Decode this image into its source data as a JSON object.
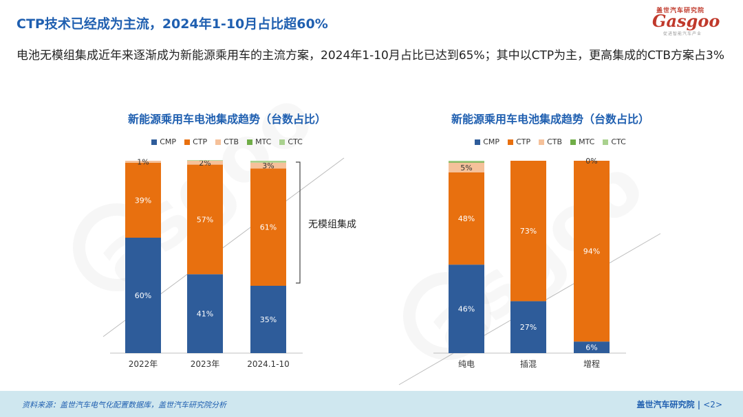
{
  "header": {
    "title": "CTP技术已经成为主流，2024年1-10月占比超60%",
    "subtitle": "电池无模组集成近年来逐渐成为新能源乘用车的主流方案，2024年1-10月占比已达到65%；其中以CTP为主，更高集成的CTB方案占3%"
  },
  "logo": {
    "cn": "盖世汽车研究院",
    "en": "Gasgoo",
    "tag": "促进智能汽车产业"
  },
  "colors": {
    "CMP": "#2e5c9a",
    "CTP": "#e8700f",
    "CTB": "#f5c19a",
    "MTC": "#70ad47",
    "CTC": "#a9d18e",
    "accent": "#1f5fb0"
  },
  "chart_data": [
    {
      "type": "bar",
      "stacked": true,
      "title": "新能源乘用车电池集成趋势（台数占比）",
      "legend": [
        "CMP",
        "CTP",
        "CTB",
        "MTC",
        "CTC"
      ],
      "legend_position": "top",
      "categories": [
        "2022年",
        "2023年",
        "2024.1-10"
      ],
      "series": [
        {
          "name": "CMP",
          "values": [
            60,
            41,
            35
          ],
          "labels": [
            "60%",
            "41%",
            "35%"
          ]
        },
        {
          "name": "CTP",
          "values": [
            39,
            57,
            61
          ],
          "labels": [
            "39%",
            "57%",
            "61%"
          ]
        },
        {
          "name": "CTB",
          "values": [
            1,
            2,
            3
          ],
          "labels": [
            "1%",
            "2%",
            "3%"
          ]
        },
        {
          "name": "MTC",
          "values": [
            0,
            0,
            0
          ],
          "labels": [
            "",
            "",
            ""
          ]
        },
        {
          "name": "CTC",
          "values": [
            0,
            0.3,
            1
          ],
          "labels": [
            "",
            "",
            ""
          ]
        }
      ],
      "ylim": [
        0,
        100
      ],
      "annotation": "无模组集成"
    },
    {
      "type": "bar",
      "stacked": true,
      "title": "新能源乘用车电池集成趋势（台数占比）",
      "legend": [
        "CMP",
        "CTP",
        "CTB",
        "MTC",
        "CTC"
      ],
      "legend_position": "top",
      "categories": [
        "纯电",
        "插混",
        "增程"
      ],
      "series": [
        {
          "name": "CMP",
          "values": [
            46,
            27,
            6
          ],
          "labels": [
            "46%",
            "27%",
            "6%"
          ]
        },
        {
          "name": "CTP",
          "values": [
            48,
            73,
            94
          ],
          "labels": [
            "48%",
            "73%",
            "94%"
          ]
        },
        {
          "name": "CTB",
          "values": [
            5,
            0,
            0
          ],
          "labels": [
            "5%",
            "",
            "0%"
          ]
        },
        {
          "name": "MTC",
          "values": [
            0.5,
            0,
            0
          ],
          "labels": [
            "",
            "",
            ""
          ]
        },
        {
          "name": "CTC",
          "values": [
            0.5,
            0,
            0
          ],
          "labels": [
            "",
            "",
            ""
          ]
        }
      ],
      "ylim": [
        0,
        100
      ]
    }
  ],
  "footer": {
    "source": "资料来源：盖世汽车电气化配置数据库，盖世汽车研究院分析",
    "org": "盖世汽车研究院",
    "page": "<2>"
  }
}
